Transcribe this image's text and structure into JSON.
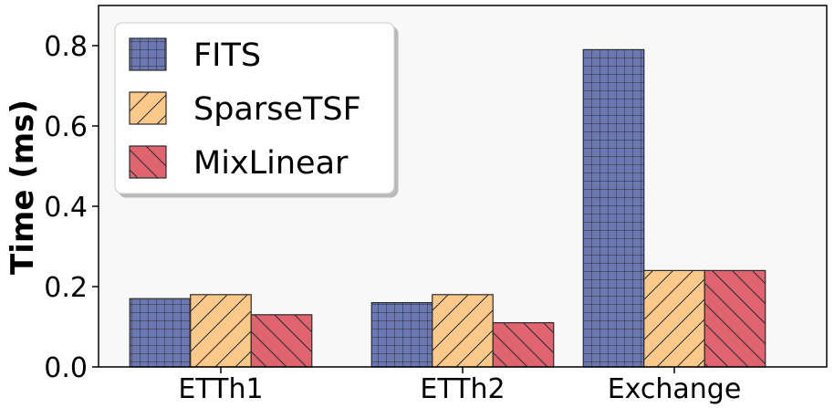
{
  "chart_data": {
    "type": "bar",
    "categories": [
      "ETTh1",
      "ETTh2",
      "Exchange"
    ],
    "series": [
      {
        "name": "FITS",
        "values": [
          0.17,
          0.16,
          0.79
        ],
        "color": "#6b78b4",
        "hatch": "grid"
      },
      {
        "name": "SparseTSF",
        "values": [
          0.18,
          0.18,
          0.24
        ],
        "color": "#fdc98a",
        "hatch": "diagonal-forward"
      },
      {
        "name": "MixLinear",
        "values": [
          0.13,
          0.11,
          0.24
        ],
        "color": "#e06470",
        "hatch": "diagonal-back"
      }
    ],
    "title": "",
    "xlabel": "",
    "ylabel": "Time (ms)",
    "ylim": [
      0,
      0.9
    ],
    "yticks": [
      "0.0",
      "0.2",
      "0.4",
      "0.6",
      "0.8"
    ],
    "grid": false,
    "legend_position": "top-left",
    "background": "#f8f8f8"
  }
}
